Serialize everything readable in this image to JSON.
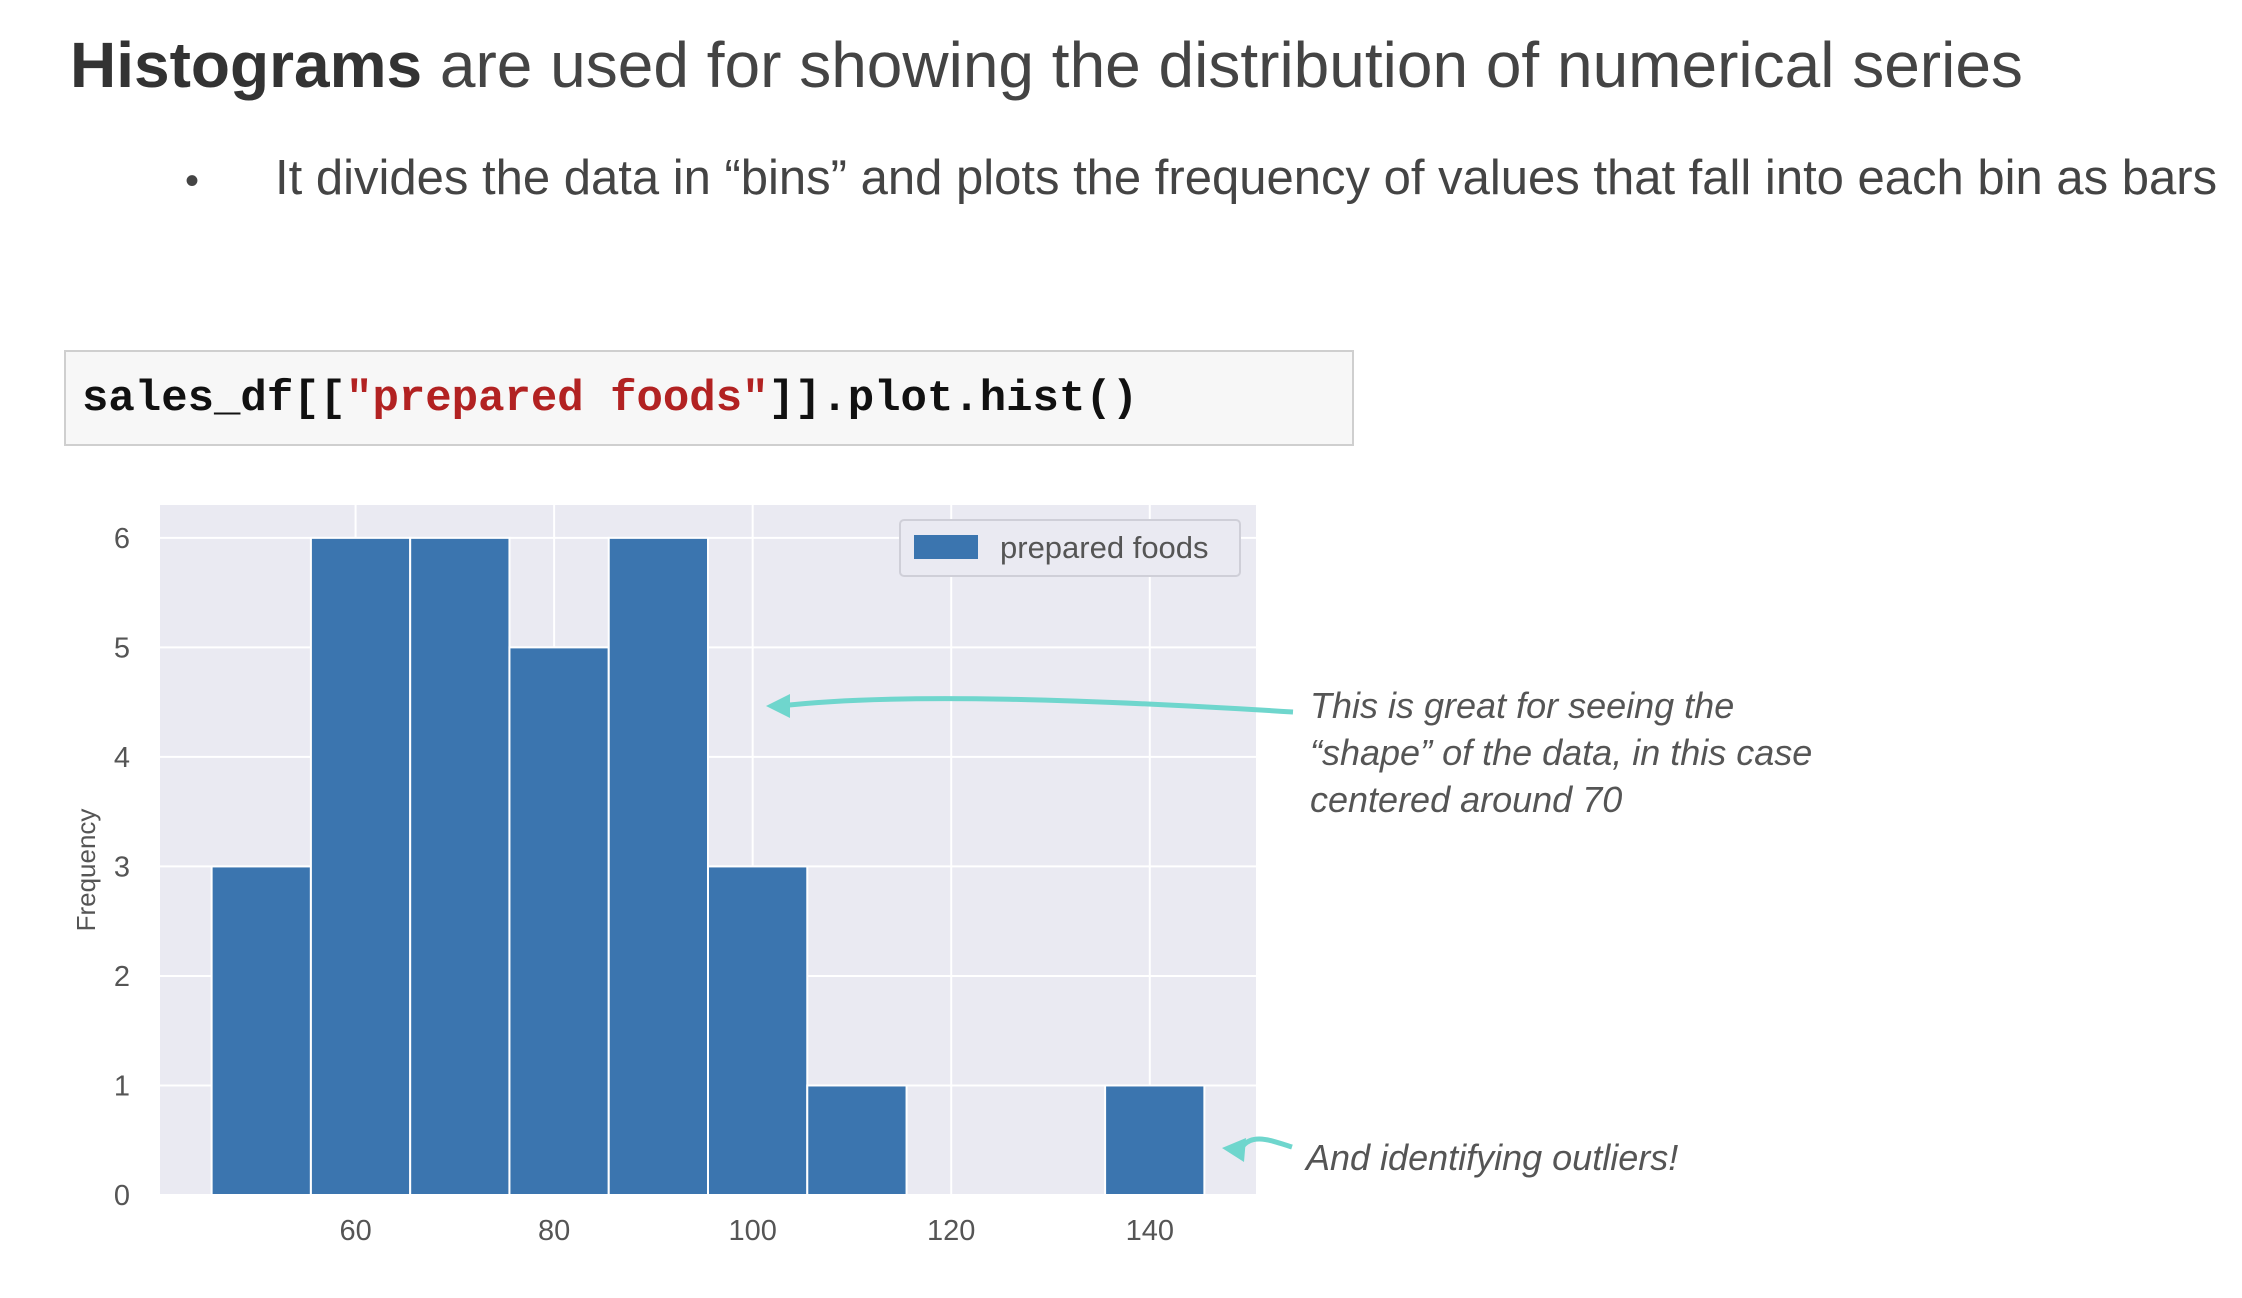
{
  "header": {
    "title_bold": "Histograms",
    "title_rest": " are used for showing the distribution of numerical series",
    "bullet": "It divides the data in “bins” and plots the frequency of values that fall into each bin as bars"
  },
  "code": {
    "prefix": "sales_df[[",
    "string": "\"prepared foods\"",
    "suffix": "]].plot.hist()"
  },
  "annotations": {
    "shape": "This is great for seeing the “shape” of the data, in this case centered around 70",
    "outliers": "And identifying outliers!"
  },
  "colors": {
    "bar": "#3b75af",
    "plot_bg": "#eaeaf2",
    "arrow": "#6fd6cd"
  },
  "chart_data": {
    "type": "bar",
    "bins": [
      {
        "start": 45.5,
        "end": 55.5,
        "value": 3
      },
      {
        "start": 55.5,
        "end": 65.5,
        "value": 6
      },
      {
        "start": 65.5,
        "end": 75.5,
        "value": 6
      },
      {
        "start": 75.5,
        "end": 85.5,
        "value": 5
      },
      {
        "start": 85.5,
        "end": 95.5,
        "value": 6
      },
      {
        "start": 95.5,
        "end": 105.5,
        "value": 3
      },
      {
        "start": 105.5,
        "end": 115.5,
        "value": 1
      },
      {
        "start": 115.5,
        "end": 125.5,
        "value": 0
      },
      {
        "start": 125.5,
        "end": 135.5,
        "value": 0
      },
      {
        "start": 135.5,
        "end": 145.5,
        "value": 1
      }
    ],
    "xticks": [
      60,
      80,
      100,
      120,
      140
    ],
    "yticks": [
      0,
      1,
      2,
      3,
      4,
      5,
      6
    ],
    "xlim": [
      40.3,
      150.7
    ],
    "ylim": [
      0,
      6.3
    ],
    "ylabel": "Frequency",
    "xlabel": "",
    "legend": {
      "label": "prepared foods",
      "position": "top-right"
    },
    "grid": true
  }
}
